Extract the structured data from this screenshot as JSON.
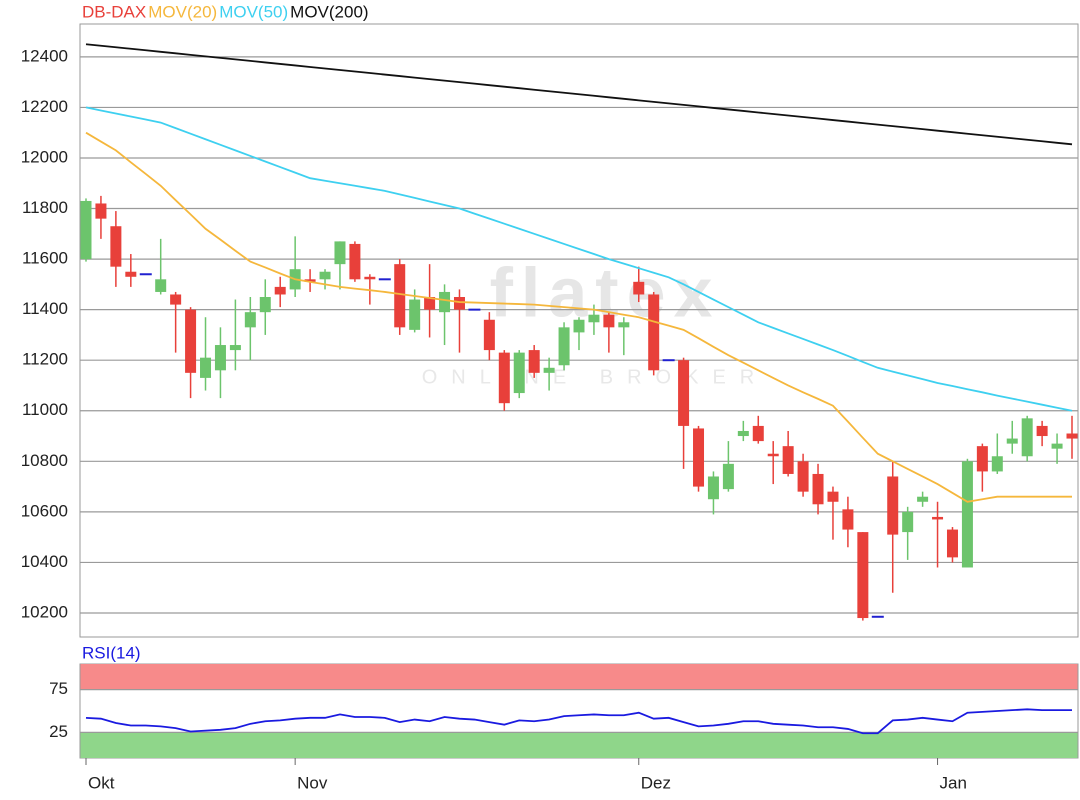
{
  "chart_data": [
    {
      "type": "candlestick",
      "watermark": "flatex",
      "watermark_sub": "ONLINE BROKER",
      "categories": [
        "Okt",
        null,
        null,
        null,
        null,
        null,
        null,
        null,
        null,
        null,
        null,
        null,
        null,
        null,
        "Nov",
        null,
        null,
        null,
        null,
        null,
        null,
        null,
        null,
        null,
        null,
        null,
        null,
        null,
        null,
        null,
        null,
        null,
        null,
        null,
        null,
        null,
        null,
        "Dez",
        null,
        null,
        null,
        null,
        null,
        null,
        null,
        null,
        null,
        null,
        null,
        null,
        null,
        null,
        null,
        null,
        null,
        null,
        null,
        "Jan",
        null,
        null,
        null,
        null,
        null,
        null,
        null,
        null,
        null
      ],
      "ylim": [
        10105,
        12530
      ],
      "yticks": [
        10200,
        10400,
        10600,
        10800,
        11000,
        11200,
        11400,
        11600,
        11800,
        12000,
        12200,
        12400
      ],
      "grid": true,
      "series": [
        {
          "name": "DB-DAX",
          "color": "#e8403a",
          "up_color": "#6cc46c",
          "flat_color": "#2020d0",
          "open": [
            11600,
            11820,
            11730,
            11550,
            11540,
            11470,
            11460,
            11400,
            11130,
            11160,
            11240,
            11330,
            11390,
            11490,
            11480,
            11520,
            11520,
            11580,
            11660,
            11530,
            11520,
            11580,
            11320,
            11450,
            11390,
            11450,
            11400,
            11360,
            11230,
            11070,
            11240,
            11150,
            11180,
            11310,
            11350,
            11380,
            11330,
            11510,
            11460,
            11200,
            11200,
            10930,
            10650,
            10690,
            10900,
            10940,
            10830,
            10860,
            10800,
            10750,
            10680,
            10610,
            10520,
            10185,
            10740,
            10520,
            10640,
            10580,
            10530,
            10380,
            10860,
            10760,
            10870,
            10820,
            10940,
            10850,
            10910
          ],
          "high": [
            11840,
            11850,
            11790,
            11620,
            11540,
            11680,
            11470,
            11410,
            11370,
            11330,
            11440,
            11450,
            11520,
            11530,
            11690,
            11560,
            11560,
            11670,
            11670,
            11540,
            11520,
            11600,
            11480,
            11580,
            11500,
            11480,
            11400,
            11390,
            11240,
            11240,
            11260,
            11210,
            11350,
            11370,
            11420,
            11390,
            11370,
            11570,
            11470,
            11200,
            11210,
            10940,
            10760,
            10880,
            10960,
            10980,
            10880,
            10920,
            10830,
            10790,
            10700,
            10660,
            10520,
            10185,
            10800,
            10620,
            10680,
            10640,
            10540,
            10810,
            10870,
            10910,
            10960,
            10980,
            10960,
            10910,
            10980
          ],
          "low": [
            11590,
            11680,
            11490,
            11490,
            11540,
            11460,
            11230,
            11050,
            11080,
            11050,
            11160,
            11200,
            11300,
            11410,
            11450,
            11470,
            11480,
            11480,
            11510,
            11420,
            11520,
            11300,
            11310,
            11290,
            11260,
            11230,
            11400,
            11200,
            11000,
            11050,
            11130,
            11080,
            11160,
            11240,
            11300,
            11230,
            11220,
            11430,
            11140,
            11200,
            10770,
            10680,
            10590,
            10680,
            10880,
            10870,
            10710,
            10740,
            10660,
            10590,
            10490,
            10460,
            10170,
            10185,
            10280,
            10410,
            10620,
            10380,
            10400,
            10380,
            10680,
            10750,
            10830,
            10800,
            10860,
            10790,
            10810
          ],
          "close": [
            11830,
            11760,
            11570,
            11530,
            11540,
            11520,
            11420,
            11150,
            11210,
            11260,
            11260,
            11390,
            11450,
            11460,
            11560,
            11510,
            11550,
            11670,
            11520,
            11520,
            11520,
            11330,
            11440,
            11400,
            11470,
            11400,
            11400,
            11240,
            11030,
            11230,
            11150,
            11170,
            11330,
            11360,
            11380,
            11330,
            11350,
            11460,
            11160,
            11200,
            10940,
            10700,
            10740,
            10790,
            10920,
            10880,
            10820,
            10750,
            10680,
            10630,
            10640,
            10530,
            10180,
            10185,
            10510,
            10600,
            10660,
            10570,
            10420,
            10800,
            10760,
            10820,
            10890,
            10970,
            10900,
            10870,
            10890
          ]
        },
        {
          "name": "MOV(20)",
          "type": "line",
          "color": "#f5b73c",
          "values": [
            12100,
            12065,
            12030,
            11983,
            11937,
            11890,
            11833,
            11777,
            11720,
            11677,
            11633,
            11590,
            11567,
            11543,
            11520,
            11510,
            11500,
            11490,
            11483,
            11477,
            11470,
            11462,
            11454,
            11446,
            11438,
            11430,
            11428,
            11426,
            11424,
            11422,
            11420,
            11415,
            11410,
            11405,
            11400,
            11390,
            11380,
            11370,
            11353,
            11337,
            11320,
            11287,
            11253,
            11220,
            11190,
            11160,
            11130,
            11100,
            11073,
            11047,
            11020,
            10957,
            10893,
            10830,
            10800,
            10770,
            10740,
            10710,
            10675,
            10640,
            10650,
            10660,
            10660,
            10660,
            10660,
            10660,
            10660
          ]
        },
        {
          "name": "MOV(50)",
          "type": "line",
          "color": "#3ed0f0",
          "values": [
            12200,
            12188,
            12176,
            12164,
            12152,
            12140,
            12118,
            12096,
            12074,
            12052,
            12030,
            12008,
            11986,
            11964,
            11942,
            11920,
            11910,
            11900,
            11890,
            11880,
            11870,
            11856,
            11842,
            11828,
            11814,
            11800,
            11780,
            11760,
            11740,
            11720,
            11700,
            11680,
            11660,
            11640,
            11620,
            11600,
            11582,
            11564,
            11546,
            11528,
            11500,
            11470,
            11440,
            11410,
            11380,
            11350,
            11328,
            11306,
            11284,
            11262,
            11240,
            11217,
            11193,
            11170,
            11155,
            11140,
            11125,
            11110,
            11098,
            11085,
            11073,
            11060,
            11048,
            11036,
            11024,
            11012,
            11000
          ]
        },
        {
          "name": "MOV(200)",
          "type": "line",
          "color": "#111111",
          "values": [
            12450,
            12444,
            12438,
            12432,
            12426,
            12420,
            12414,
            12408,
            12402,
            12396,
            12390,
            12384,
            12378,
            12372,
            12366,
            12360,
            12354,
            12348,
            12342,
            12336,
            12330,
            12324,
            12318,
            12312,
            12306,
            12300,
            12294,
            12288,
            12282,
            12276,
            12270,
            12264,
            12258,
            12252,
            12246,
            12240,
            12234,
            12228,
            12222,
            12216,
            12210,
            12204,
            12198,
            12192,
            12186,
            12180,
            12174,
            12168,
            12162,
            12156,
            12150,
            12144,
            12138,
            12132,
            12126,
            12120,
            12114,
            12108,
            12102,
            12096,
            12090,
            12084,
            12078,
            12072,
            12066,
            12060,
            12054
          ]
        }
      ]
    },
    {
      "type": "line",
      "ylim": [
        -5,
        105
      ],
      "yticks": [
        25,
        75
      ],
      "grid": true,
      "bands": [
        {
          "range": [
            75,
            105
          ],
          "color": "#f78a8a"
        },
        {
          "range": [
            -5,
            25
          ],
          "color": "#8fd68a"
        }
      ],
      "series": [
        {
          "name": "RSI(14)",
          "color": "#1a1ae0",
          "values": [
            42,
            41,
            36,
            33,
            33,
            32,
            30,
            26,
            27,
            28,
            30,
            35,
            38,
            39,
            41,
            42,
            42,
            46,
            43,
            43,
            42,
            37,
            40,
            38,
            43,
            41,
            40,
            37,
            34,
            39,
            38,
            40,
            44,
            45,
            46,
            45,
            45,
            48,
            41,
            42,
            37,
            32,
            33,
            35,
            38,
            38,
            35,
            34,
            33,
            31,
            31,
            29,
            24,
            24,
            39,
            40,
            42,
            40,
            38,
            48,
            49,
            50,
            51,
            52,
            51,
            51,
            51
          ]
        }
      ]
    }
  ]
}
